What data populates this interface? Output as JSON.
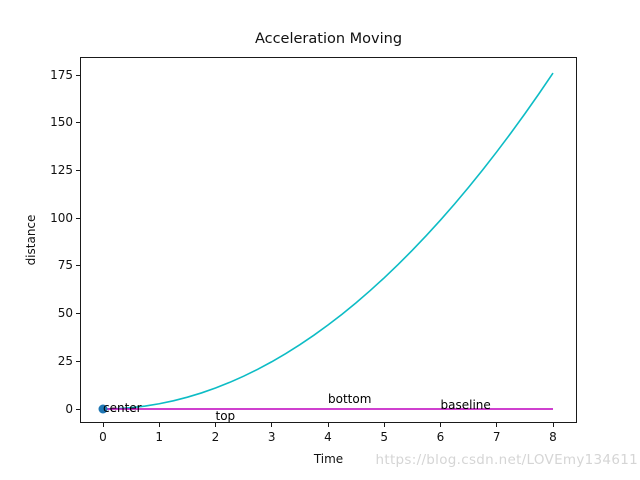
{
  "watermark": "https://blog.csdn.net/LOVEmy134611",
  "chart_data": {
    "type": "line",
    "title": "Acceleration Moving",
    "xlabel": "Time",
    "ylabel": "distance",
    "xlim": [
      -0.4,
      8.4
    ],
    "ylim": [
      -7.5,
      184.5
    ],
    "grid": false,
    "legend": "none",
    "xticks": [
      0,
      1,
      2,
      3,
      4,
      5,
      6,
      7,
      8
    ],
    "yticks": [
      0,
      25,
      50,
      75,
      100,
      125,
      150,
      175
    ],
    "series": [
      {
        "name": "distance-curve",
        "color": "#0dbcc5",
        "x": [
          0,
          0.25,
          0.5,
          0.75,
          1,
          1.25,
          1.5,
          1.75,
          2,
          2.25,
          2.5,
          2.75,
          3,
          3.25,
          3.5,
          3.75,
          4,
          4.25,
          4.5,
          4.75,
          5,
          5.25,
          5.5,
          5.75,
          6,
          6.25,
          6.5,
          6.75,
          7,
          7.25,
          7.5,
          7.75,
          8
        ],
        "y": [
          0,
          0.17,
          0.69,
          1.55,
          2.75,
          4.3,
          6.19,
          8.42,
          11,
          13.92,
          17.19,
          20.8,
          24.75,
          29.05,
          33.69,
          38.67,
          44,
          49.67,
          55.69,
          62.05,
          68.75,
          75.8,
          83.19,
          90.92,
          99,
          107.42,
          116.19,
          125.3,
          134.75,
          144.55,
          154.69,
          165.17,
          176
        ]
      },
      {
        "name": "zero-hline",
        "color": "#bf00bf",
        "x": [
          0,
          8
        ],
        "y": [
          0,
          0
        ]
      }
    ],
    "marker": {
      "name": "origin-marker",
      "x": 0,
      "y": 0,
      "color": "#1f77b4"
    },
    "annotations": [
      {
        "text": "center",
        "x": 0,
        "y": 0,
        "va": "center"
      },
      {
        "text": "top",
        "x": 2,
        "y": 0,
        "va": "top"
      },
      {
        "text": "bottom",
        "x": 4,
        "y": 0,
        "va": "bottom"
      },
      {
        "text": "baseline",
        "x": 6,
        "y": 0,
        "va": "baseline"
      }
    ]
  }
}
